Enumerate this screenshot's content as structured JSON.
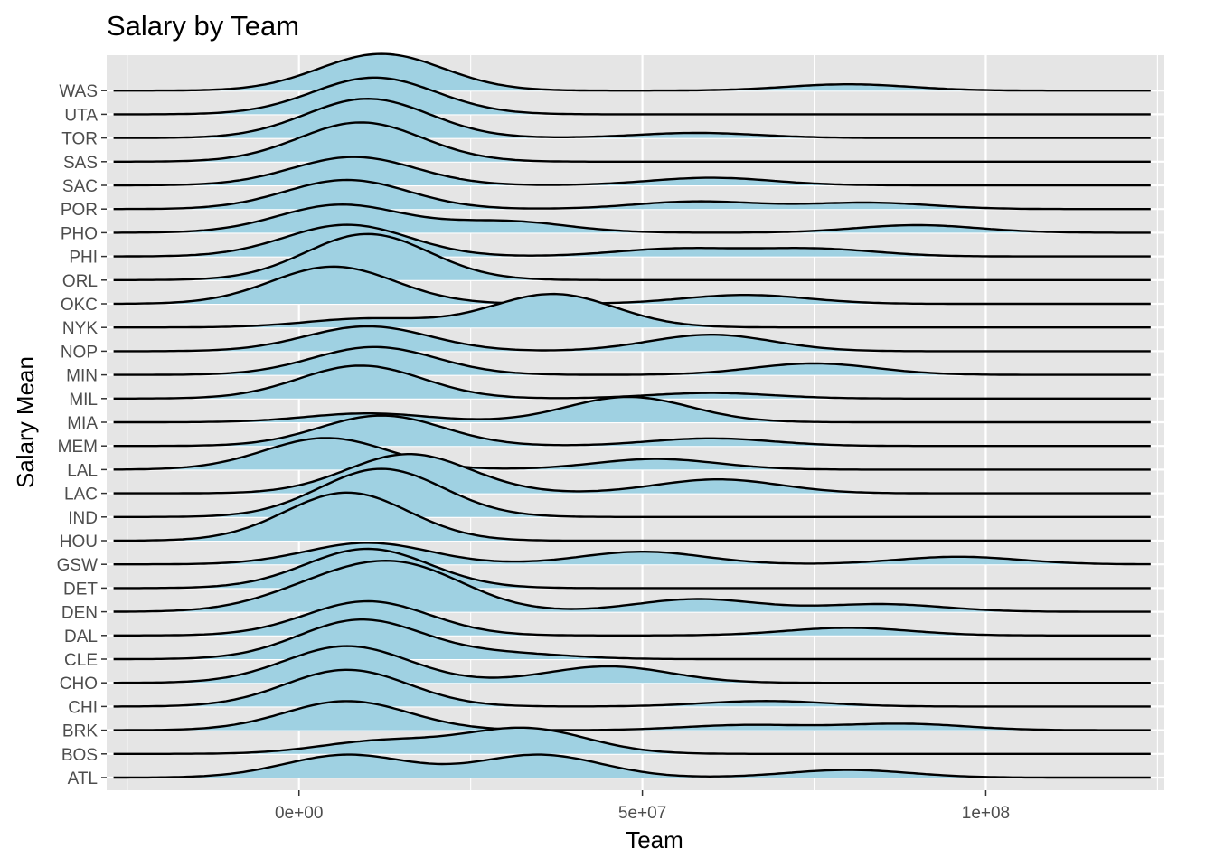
{
  "chart_data": {
    "type": "ridgeline",
    "title": "Salary by Team",
    "xlabel": "Team",
    "ylabel": "Salary Mean",
    "xlim": [
      -28000000,
      126000000
    ],
    "x_data_range": [
      -27000000,
      124000000
    ],
    "x_ticks": [
      0,
      50000000,
      100000000
    ],
    "x_tick_labels": [
      "0e+00",
      "5e+07",
      "1e+08"
    ],
    "x_minor_ticks": [
      -25000000,
      25000000,
      75000000,
      125000000
    ],
    "categories": [
      "ATL",
      "BOS",
      "BRK",
      "CHI",
      "CHO",
      "CLE",
      "DAL",
      "DEN",
      "DET",
      "GSW",
      "HOU",
      "IND",
      "LAC",
      "LAL",
      "MEM",
      "MIA",
      "MIL",
      "MIN",
      "NOP",
      "NYK",
      "OKC",
      "ORL",
      "PHI",
      "PHO",
      "POR",
      "SAC",
      "SAS",
      "TOR",
      "UTA",
      "WAS"
    ],
    "fill_color": "#9fd1e2",
    "line_color": "#000000",
    "panel_color": "#e5e5e5",
    "grid": true,
    "density_peaks": [
      {
        "team": "ATL",
        "peaks": [
          [
            7000000,
            0.9
          ],
          [
            35000000,
            0.9
          ],
          [
            80000000,
            0.3
          ]
        ]
      },
      {
        "team": "BOS",
        "peaks": [
          [
            12000000,
            0.5
          ],
          [
            33000000,
            1.0
          ]
        ]
      },
      {
        "team": "BRK",
        "peaks": [
          [
            7000000,
            1.15
          ],
          [
            65000000,
            0.2
          ],
          [
            88000000,
            0.25
          ]
        ]
      },
      {
        "team": "CHI",
        "peaks": [
          [
            7000000,
            1.45
          ],
          [
            68000000,
            0.22
          ]
        ]
      },
      {
        "team": "CHO",
        "peaks": [
          [
            7000000,
            1.45
          ],
          [
            45000000,
            0.65
          ]
        ]
      },
      {
        "team": "CLE",
        "peaks": [
          [
            9000000,
            1.55
          ],
          [
            30000000,
            0.22
          ]
        ]
      },
      {
        "team": "DAL",
        "peaks": [
          [
            10000000,
            1.35
          ],
          [
            80000000,
            0.3
          ]
        ]
      },
      {
        "team": "DEN",
        "peaks": [
          [
            4000000,
            0.9
          ],
          [
            16000000,
            1.55
          ],
          [
            58000000,
            0.5
          ],
          [
            85000000,
            0.3
          ]
        ]
      },
      {
        "team": "DET",
        "peaks": [
          [
            10000000,
            1.55
          ]
        ]
      },
      {
        "team": "GSW",
        "peaks": [
          [
            10000000,
            0.85
          ],
          [
            50000000,
            0.5
          ],
          [
            96000000,
            0.3
          ]
        ]
      },
      {
        "team": "HOU",
        "peaks": [
          [
            7000000,
            1.9
          ]
        ]
      },
      {
        "team": "IND",
        "peaks": [
          [
            12000000,
            1.9
          ]
        ]
      },
      {
        "team": "LAC",
        "peaks": [
          [
            16000000,
            1.55
          ],
          [
            61000000,
            0.55
          ]
        ]
      },
      {
        "team": "LAL",
        "peaks": [
          [
            4000000,
            1.25
          ],
          [
            52000000,
            0.42
          ]
        ]
      },
      {
        "team": "MEM",
        "peaks": [
          [
            12000000,
            1.2
          ],
          [
            60000000,
            0.3
          ]
        ]
      },
      {
        "team": "MIA",
        "peaks": [
          [
            10000000,
            0.35
          ],
          [
            48000000,
            1.0
          ]
        ]
      },
      {
        "team": "MIL",
        "peaks": [
          [
            9000000,
            1.3
          ],
          [
            60000000,
            0.22
          ]
        ]
      },
      {
        "team": "MIN",
        "peaks": [
          [
            11000000,
            1.1
          ],
          [
            75000000,
            0.45
          ]
        ]
      },
      {
        "team": "NOP",
        "peaks": [
          [
            10000000,
            0.98
          ],
          [
            60000000,
            0.65
          ]
        ]
      },
      {
        "team": "NYK",
        "peaks": [
          [
            10000000,
            0.35
          ],
          [
            37000000,
            1.32
          ]
        ]
      },
      {
        "team": "OKC",
        "peaks": [
          [
            5000000,
            1.47
          ],
          [
            65000000,
            0.35
          ]
        ]
      },
      {
        "team": "ORL",
        "peaks": [
          [
            10000000,
            1.82
          ]
        ]
      },
      {
        "team": "PHI",
        "peaks": [
          [
            7000000,
            1.25
          ],
          [
            55000000,
            0.3
          ],
          [
            75000000,
            0.3
          ]
        ]
      },
      {
        "team": "PHO",
        "peaks": [
          [
            6000000,
            1.1
          ],
          [
            30000000,
            0.45
          ],
          [
            90000000,
            0.3
          ]
        ]
      },
      {
        "team": "POR",
        "peaks": [
          [
            7000000,
            1.15
          ],
          [
            58000000,
            0.3
          ],
          [
            83000000,
            0.25
          ]
        ]
      },
      {
        "team": "SAC",
        "peaks": [
          [
            8000000,
            1.12
          ],
          [
            60000000,
            0.3
          ]
        ]
      },
      {
        "team": "SAS",
        "peaks": [
          [
            9000000,
            1.55
          ]
        ]
      },
      {
        "team": "TOR",
        "peaks": [
          [
            10000000,
            1.55
          ],
          [
            58000000,
            0.2
          ]
        ]
      },
      {
        "team": "UTA",
        "peaks": [
          [
            11000000,
            1.45
          ]
        ]
      },
      {
        "team": "WAS",
        "peaks": [
          [
            12000000,
            1.45
          ],
          [
            80000000,
            0.25
          ]
        ]
      }
    ]
  }
}
